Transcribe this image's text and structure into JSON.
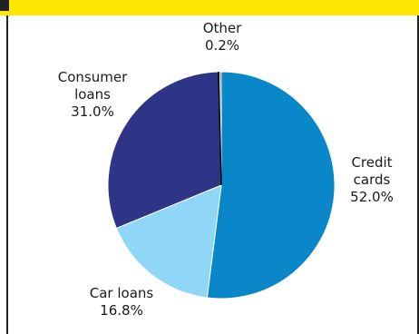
{
  "chart_data": {
    "type": "pie",
    "title": "",
    "slices": [
      {
        "name": "Credit cards",
        "label_lines": [
          "Credit",
          "cards"
        ],
        "value": 52.0,
        "value_label": "52.0%",
        "color": "#0a87c9"
      },
      {
        "name": "Car loans",
        "label_lines": [
          "Car loans"
        ],
        "value": 16.8,
        "value_label": "16.8%",
        "color": "#8fd6f7"
      },
      {
        "name": "Consumer loans",
        "label_lines": [
          "Consumer",
          "loans"
        ],
        "value": 31.0,
        "value_label": "31.0%",
        "color": "#2e3586"
      },
      {
        "name": "Other",
        "label_lines": [
          "Other"
        ],
        "value": 0.2,
        "value_label": "0.2%",
        "color": "#1a1a1a"
      }
    ],
    "start": "12 o'clock",
    "direction": "clockwise"
  },
  "colors": {
    "header_band": "#ffe600",
    "frame_rule": "#222222",
    "slice_border": "#ffffff"
  }
}
